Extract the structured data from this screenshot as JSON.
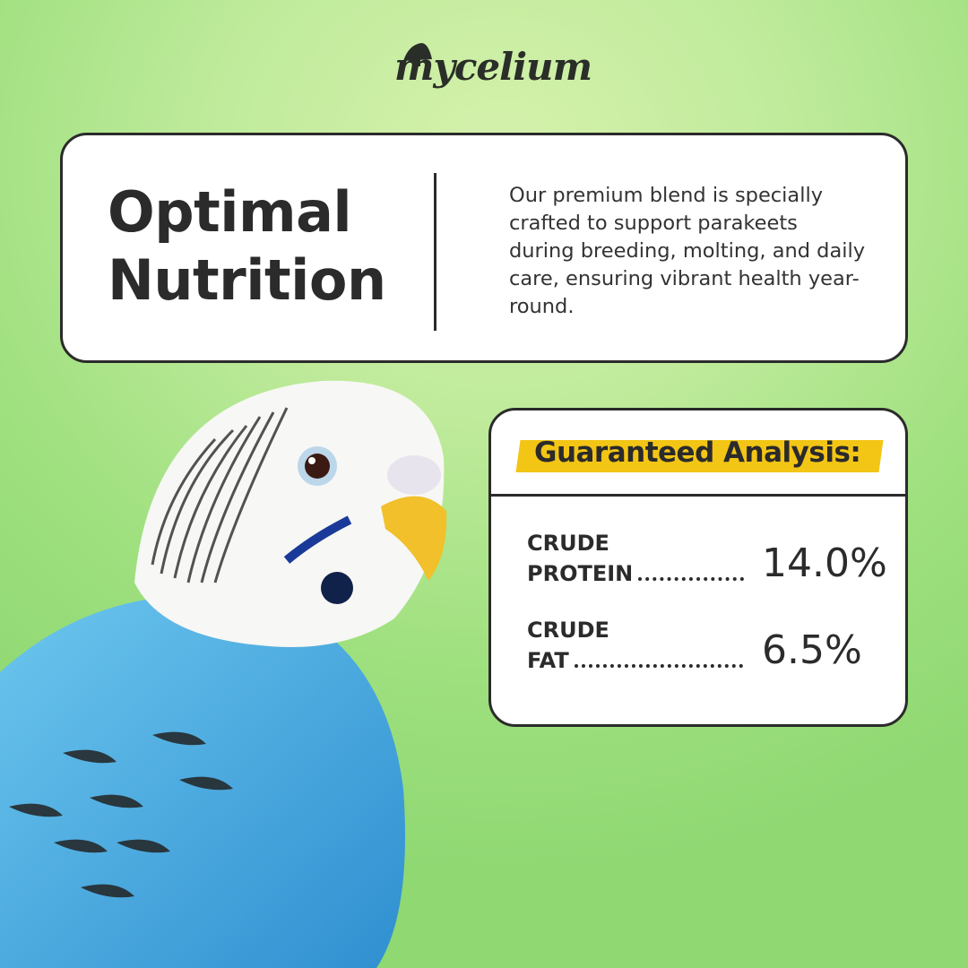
{
  "brand": {
    "name": "mycelium"
  },
  "hero": {
    "title_line1": "Optimal",
    "title_line2": "Nutrition",
    "description": "Our premium blend is specially crafted to support parakeets during breeding, molting, and daily care, ensuring vibrant health year-round."
  },
  "analysis": {
    "heading": "Guaranteed Analysis:",
    "items": [
      {
        "label_line1": "CRUDE",
        "label_line2": "PROTEIN",
        "value": "14.0%"
      },
      {
        "label_line1": "CRUDE",
        "label_line2": "FAT",
        "value": "6.5%"
      }
    ]
  },
  "colors": {
    "highlight": "#f3c515",
    "ink": "#2b2b2b",
    "background": "#a8e28a"
  }
}
